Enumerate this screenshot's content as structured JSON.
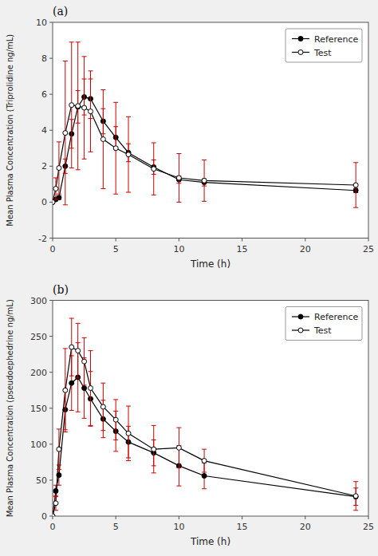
{
  "chart_data": [
    {
      "type": "line",
      "title": "(a)",
      "x_label": "Time (h)",
      "y_label": "Mean Plasma Concentration (Triprolidine ng/mL)",
      "xlim": [
        0,
        25
      ],
      "ylim": [
        -2,
        10
      ],
      "xticks": [
        0,
        5,
        10,
        15,
        20,
        25
      ],
      "yticks": [
        -2,
        0,
        2,
        4,
        6,
        8,
        10
      ],
      "grid": false,
      "legend": "top-right",
      "color": "#cc0000",
      "series": [
        {
          "name": "Reference",
          "color": "#000000",
          "marker": "circle",
          "x": [
            0,
            0.25,
            0.5,
            1.0,
            1.5,
            2.0,
            2.5,
            3.0,
            4.0,
            5.0,
            6.0,
            8.0,
            10.0,
            12.0,
            24.0
          ],
          "values": [
            0,
            0.15,
            0.25,
            2.0,
            3.8,
            5.3,
            5.85,
            5.75,
            4.5,
            3.6,
            2.75,
            1.95,
            1.25,
            1.1,
            0.65
          ],
          "errors": [
            0,
            0.05,
            0.1,
            0.4,
            0.8,
            0.9,
            1.0,
            1.1,
            0.7,
            0.6,
            0.5,
            0.4,
            0.2,
            0.2,
            0.12
          ]
        },
        {
          "name": "Test",
          "color": "#000000",
          "marker": "open-circle",
          "x": [
            0,
            0.25,
            0.5,
            1.0,
            1.5,
            2.0,
            2.5,
            3.0,
            4.0,
            5.0,
            6.0,
            8.0,
            10.0,
            12.0,
            24.0
          ],
          "values": [
            0,
            0.75,
            1.9,
            3.85,
            5.4,
            5.35,
            5.25,
            5.05,
            3.5,
            3.0,
            2.65,
            1.85,
            1.35,
            1.2,
            0.95
          ],
          "errors": [
            0,
            0.6,
            1.45,
            4.0,
            3.5,
            3.55,
            2.85,
            2.25,
            2.75,
            2.55,
            2.1,
            1.45,
            1.35,
            1.15,
            1.25
          ]
        }
      ]
    },
    {
      "type": "line",
      "title": "(b)",
      "x_label": "Time (h)",
      "y_label": "Mean Plasma Concentration (pseudoephedrine ng/mL)",
      "xlim": [
        0,
        25
      ],
      "ylim": [
        0,
        300
      ],
      "xticks": [
        0,
        5,
        10,
        15,
        20,
        25
      ],
      "yticks": [
        0,
        50,
        100,
        150,
        200,
        250,
        300
      ],
      "grid": false,
      "legend": "top-right",
      "color": "#cc0000",
      "series": [
        {
          "name": "Reference",
          "color": "#000000",
          "marker": "circle",
          "x": [
            0,
            0.25,
            0.5,
            1.0,
            1.5,
            2.0,
            2.5,
            3.0,
            4.0,
            5.0,
            6.0,
            8.0,
            10.0,
            12.0,
            24.0
          ],
          "values": [
            0,
            35,
            57,
            148,
            185,
            193,
            178,
            163,
            135,
            118,
            103,
            88,
            70,
            56,
            27
          ],
          "errors": [
            0,
            8,
            14,
            28,
            38,
            48,
            42,
            38,
            26,
            28,
            22,
            18,
            28,
            18,
            12
          ]
        },
        {
          "name": "Test",
          "color": "#000000",
          "marker": "open-circle",
          "x": [
            0,
            0.25,
            0.5,
            1.0,
            1.5,
            2.0,
            2.5,
            3.0,
            4.0,
            5.0,
            6.0,
            8.0,
            10.0,
            12.0,
            24.0
          ],
          "values": [
            0,
            18,
            93,
            175,
            235,
            230,
            215,
            178,
            152,
            134,
            115,
            93,
            95,
            77,
            28
          ],
          "errors": [
            0,
            10,
            28,
            58,
            40,
            38,
            33,
            52,
            33,
            28,
            38,
            33,
            28,
            16,
            20
          ]
        }
      ]
    }
  ]
}
